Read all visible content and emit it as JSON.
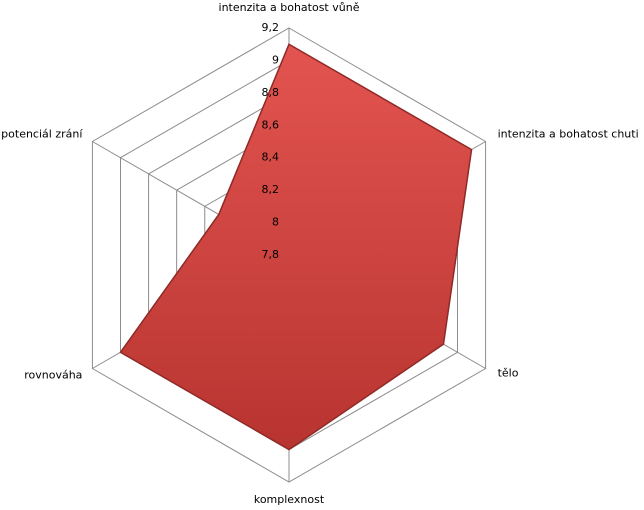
{
  "chart_data": {
    "type": "radar",
    "categories": [
      "intenzita a bohatost  vůně",
      "intenzita a bohatost  chuti",
      "tělo",
      "komplexnost",
      "rovnováha",
      "potenciál zrání"
    ],
    "values": [
      9.1,
      9.1,
      8.9,
      9.0,
      9.0,
      8.3
    ],
    "color": "#d4403c",
    "ylim": [
      7.8,
      9.2
    ],
    "yticks": [
      {
        "value": 7.8,
        "label": "7,8"
      },
      {
        "value": 8,
        "label": "8"
      },
      {
        "value": 8.2,
        "label": "8,2"
      },
      {
        "value": 8.4,
        "label": "8,4"
      },
      {
        "value": 8.6,
        "label": "8,6"
      },
      {
        "value": 8.8,
        "label": "8,8"
      },
      {
        "value": 9,
        "label": "9"
      },
      {
        "value": 9.2,
        "label": "9,2"
      }
    ],
    "grid": true
  }
}
